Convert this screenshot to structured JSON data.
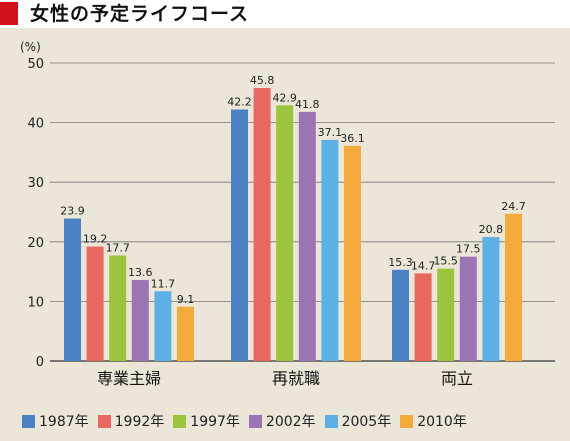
{
  "title": "女性の予定ライフコース",
  "colors": {
    "title_marker": "#d0121b",
    "background": "#ece6d8",
    "series": [
      "#4a82c4",
      "#e8675f",
      "#9cc43d",
      "#9a74b3",
      "#5db0e4",
      "#f3a93b"
    ]
  },
  "chart_data": {
    "type": "bar",
    "title": "女性の予定ライフコース",
    "ylabel": "(%)",
    "ylim": [
      0,
      50
    ],
    "yticks": [
      0,
      10,
      20,
      30,
      40,
      50
    ],
    "grid": true,
    "legend_position": "bottom",
    "categories": [
      "専業主婦",
      "再就職",
      "両立"
    ],
    "series": [
      {
        "name": "1987年",
        "values": [
          23.9,
          42.2,
          15.3
        ]
      },
      {
        "name": "1992年",
        "values": [
          19.2,
          45.8,
          14.7
        ]
      },
      {
        "name": "1997年",
        "values": [
          17.7,
          42.9,
          15.5
        ]
      },
      {
        "name": "2002年",
        "values": [
          13.6,
          41.8,
          17.5
        ]
      },
      {
        "name": "2005年",
        "values": [
          11.7,
          37.1,
          20.8
        ]
      },
      {
        "name": "2010年",
        "values": [
          9.1,
          36.1,
          24.7
        ]
      }
    ]
  }
}
